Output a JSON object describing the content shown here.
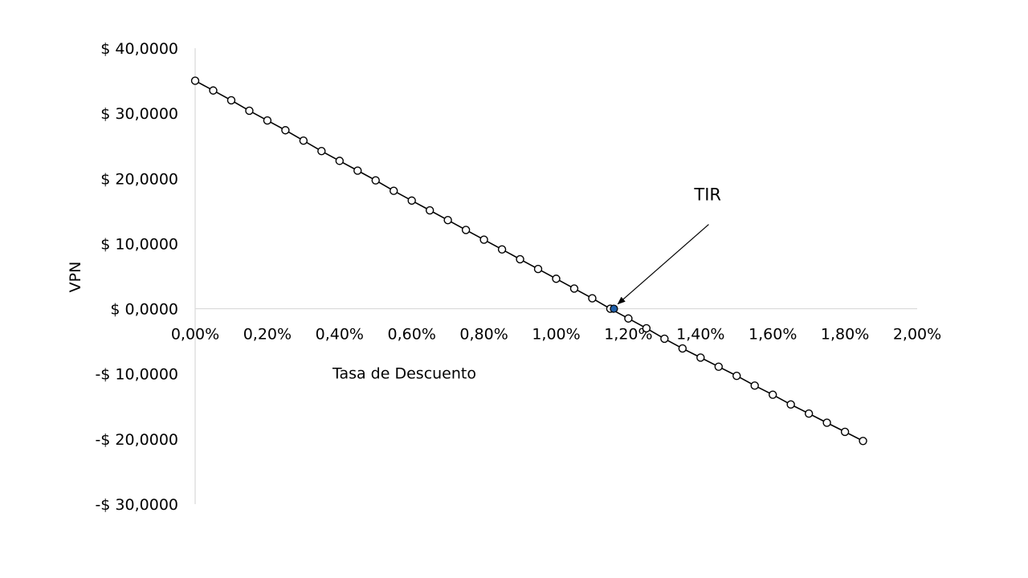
{
  "chart_data": {
    "type": "line",
    "title": "",
    "xlabel": "Tasa de Descuento",
    "ylabel": "VPN",
    "xlim": [
      0,
      0.02
    ],
    "ylim": [
      -30,
      40
    ],
    "x_ticks": [
      "0,00%",
      "0,20%",
      "0,40%",
      "0,60%",
      "0,80%",
      "1,00%",
      "1,20%",
      "1,40%",
      "1,60%",
      "1,80%",
      "2,00%"
    ],
    "y_ticks": [
      "$ 40,0000",
      "$ 30,0000",
      "$ 20,0000",
      "$ 10,0000",
      "$ 0,0000",
      "-$ 10,0000",
      "-$ 20,0000",
      "-$ 30,0000"
    ],
    "negative_tick_color": "#ff0000",
    "grid": false,
    "marker_color": "#ffffff",
    "line_color": "#000000",
    "highlight_color": "#1f5fa8",
    "series": [
      {
        "x": [
          0.0,
          0.0005,
          0.001,
          0.0015,
          0.002,
          0.0025,
          0.003,
          0.0035,
          0.004,
          0.0045,
          0.005,
          0.0055,
          0.006,
          0.0065,
          0.007,
          0.0075,
          0.008,
          0.0085,
          0.009,
          0.0095,
          0.01,
          0.0105,
          0.011,
          0.0115,
          0.012,
          0.0125,
          0.013,
          0.0135,
          0.014,
          0.0145,
          0.015,
          0.0155,
          0.016,
          0.0165,
          0.017,
          0.0175,
          0.018,
          0.0185
        ],
        "values": [
          35.0,
          33.5,
          32.0,
          30.4,
          28.9,
          27.4,
          25.8,
          24.2,
          22.7,
          21.2,
          19.7,
          18.1,
          16.6,
          15.1,
          13.6,
          12.1,
          10.6,
          9.1,
          7.6,
          6.1,
          4.6,
          3.1,
          1.6,
          0.0,
          -1.5,
          -3.0,
          -4.6,
          -6.1,
          -7.5,
          -8.9,
          -10.3,
          -11.8,
          -13.2,
          -14.7,
          -16.1,
          -17.5,
          -18.9,
          -20.3
        ]
      }
    ],
    "highlight": {
      "x": 0.0116,
      "y": 0.0
    },
    "annotation": {
      "text": "TIR"
    }
  }
}
